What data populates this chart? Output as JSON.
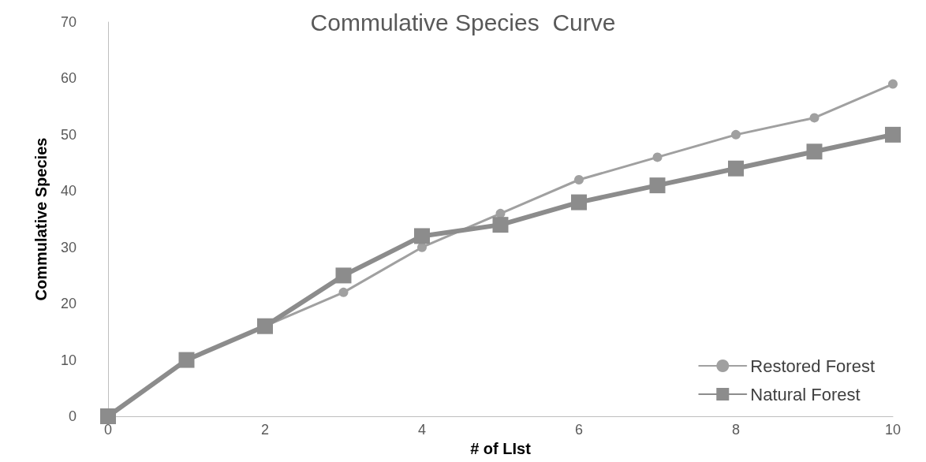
{
  "chart_data": {
    "type": "line",
    "title": "Commulative Species  Curve",
    "xlabel": "# of LIst",
    "ylabel": "Commulative Species",
    "x": [
      0,
      1,
      2,
      3,
      4,
      5,
      6,
      7,
      8,
      9,
      10
    ],
    "xlim": [
      0,
      10
    ],
    "xticks": [
      0,
      2,
      4,
      6,
      8,
      10
    ],
    "ylim": [
      0,
      70
    ],
    "yticks": [
      0,
      10,
      20,
      30,
      40,
      50,
      60,
      70
    ],
    "grid": false,
    "legend": "bottom right",
    "series": [
      {
        "name": "Restored Forest",
        "color": "#a0a0a0",
        "marker": "circle",
        "values": [
          0,
          10,
          16,
          22,
          30,
          36,
          42,
          46,
          50,
          53,
          59
        ]
      },
      {
        "name": "Natural Forest",
        "color": "#8c8c8c",
        "marker": "square",
        "values": [
          0,
          10,
          16,
          25,
          32,
          34,
          38,
          41,
          44,
          47,
          50
        ]
      }
    ]
  }
}
